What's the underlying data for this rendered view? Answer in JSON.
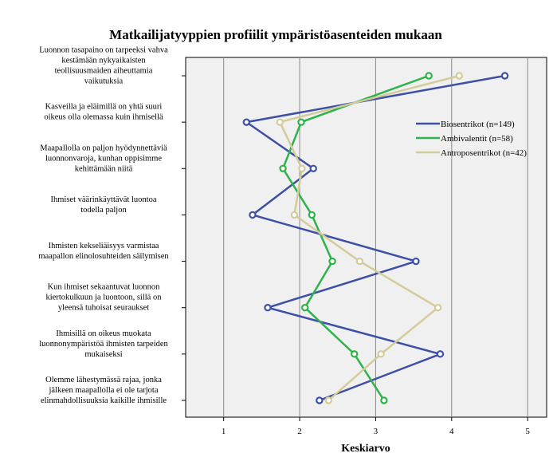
{
  "chart_data": {
    "type": "line",
    "title": "Matkailijatyyppien profiilit ympäristöasenteiden mukaan",
    "xlabel": "Keskiarvo",
    "xlim": [
      0.5,
      5.25
    ],
    "xticks": [
      1,
      2,
      3,
      4,
      5
    ],
    "grid": true,
    "legend": "top-right",
    "categories": [
      [
        "Luonnon tasapaino on tarpeeksi vahva",
        "kestämään nykyaikaisten",
        "teollisuusmaiden aiheuttamia",
        "vaikutuksia"
      ],
      [
        "Kasveilla ja eläimillä on yhtä suuri",
        "oikeus olla olemassa kuin ihmisellä"
      ],
      [
        "Maapallolla on paljon hyödynnettäviä",
        "luonnonvaroja, kunhan oppisimme",
        "kehittämään niitä"
      ],
      [
        "Ihmiset väärinkäyttävät luontoa",
        "todella paljon"
      ],
      [
        "Ihmisten kekseliäisyys varmistaa",
        "maapallon elinolosuhteiden säilymisen"
      ],
      [
        "Kun ihmiset sekaantuvat luonnon",
        "kiertokulkuun ja luontoon, sillä on",
        "yleensä tuhoisat seuraukset"
      ],
      [
        "Ihmisillä on oikeus muokata",
        "luonnonympäristöä ihmisten tarpeiden",
        "mukaiseksi"
      ],
      [
        "Olemme lähestymässä rajaa, jonka",
        "jälkeen maapallolla ei ole tarjota",
        "elinmahdollisuuksia kaikille ihmisille"
      ]
    ],
    "series": [
      {
        "name": "Biosentrikot (n=149)",
        "color": "#3d4fa6",
        "values": [
          4.7,
          1.3,
          2.18,
          1.38,
          3.53,
          1.58,
          3.85,
          2.26
        ]
      },
      {
        "name": "Ambivalentit (n=58)",
        "color": "#2db34a",
        "values": [
          3.7,
          2.02,
          1.78,
          2.16,
          2.43,
          2.07,
          2.72,
          3.11
        ]
      },
      {
        "name": "Antroposentrikot (n=42)",
        "color": "#d3cb9a",
        "values": [
          4.1,
          1.74,
          2.03,
          1.93,
          2.79,
          3.82,
          3.07,
          2.38
        ]
      }
    ]
  }
}
